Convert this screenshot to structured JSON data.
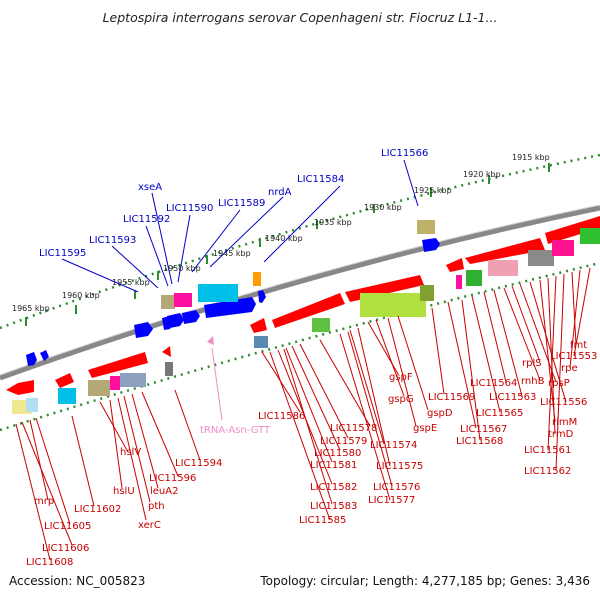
{
  "header": {
    "title": "Leptospira interrogans serovar Copenhageni str. Fiocruz L1-1..."
  },
  "footer": {
    "accession": "Accession: NC_005823",
    "topology": "Topology: circular; Length: 4,277,185 bp; Genes: 3,436"
  },
  "kbp_scale": [
    "1915 kbp",
    "1920 kbp",
    "1925 kbp",
    "1930 kbp",
    "1935 kbp",
    "1940 kbp",
    "1945 kbp",
    "1950 kbp",
    "1955 kbp",
    "1960 kbp",
    "1965 kbp"
  ],
  "forward_gene_labels": [
    "LIC11566",
    "LIC11584",
    "nrdA",
    "LIC11589",
    "LIC11590",
    "xseA",
    "LIC11592",
    "LIC11593",
    "LIC11595"
  ],
  "reverse_gene_labels": [
    "mrp",
    "LIC11605",
    "LIC11606",
    "LIC11608",
    "LIC11602",
    "hslV",
    "hslU",
    "xerC",
    "pth",
    "leuA2",
    "LIC11596",
    "LIC11594",
    "LIC11586",
    "LIC11578",
    "LIC11579",
    "LIC11580",
    "LIC11581",
    "LIC11582",
    "LIC11583",
    "LIC11585",
    "gspF",
    "gspG",
    "gspE",
    "gspD",
    "LIC11574",
    "LIC11575",
    "LIC11576",
    "LIC11577",
    "LIC11569",
    "LIC11567",
    "LIC11568",
    "LIC11565",
    "LIC11564",
    "LIC11563",
    "rnhB",
    "rplS",
    "rpsP",
    "LIC11556",
    "rimM",
    "trmD",
    "LIC11561",
    "LIC11562",
    "fmt",
    "rpe",
    "LIC11553"
  ],
  "trna_labels": [
    "tRNA-Asn-GTT"
  ],
  "colors": {
    "forward": "#0000ff",
    "reverse": "#ff0000",
    "tick": "#228b22",
    "backbone": "#888888",
    "trna": "#f08cc8"
  }
}
